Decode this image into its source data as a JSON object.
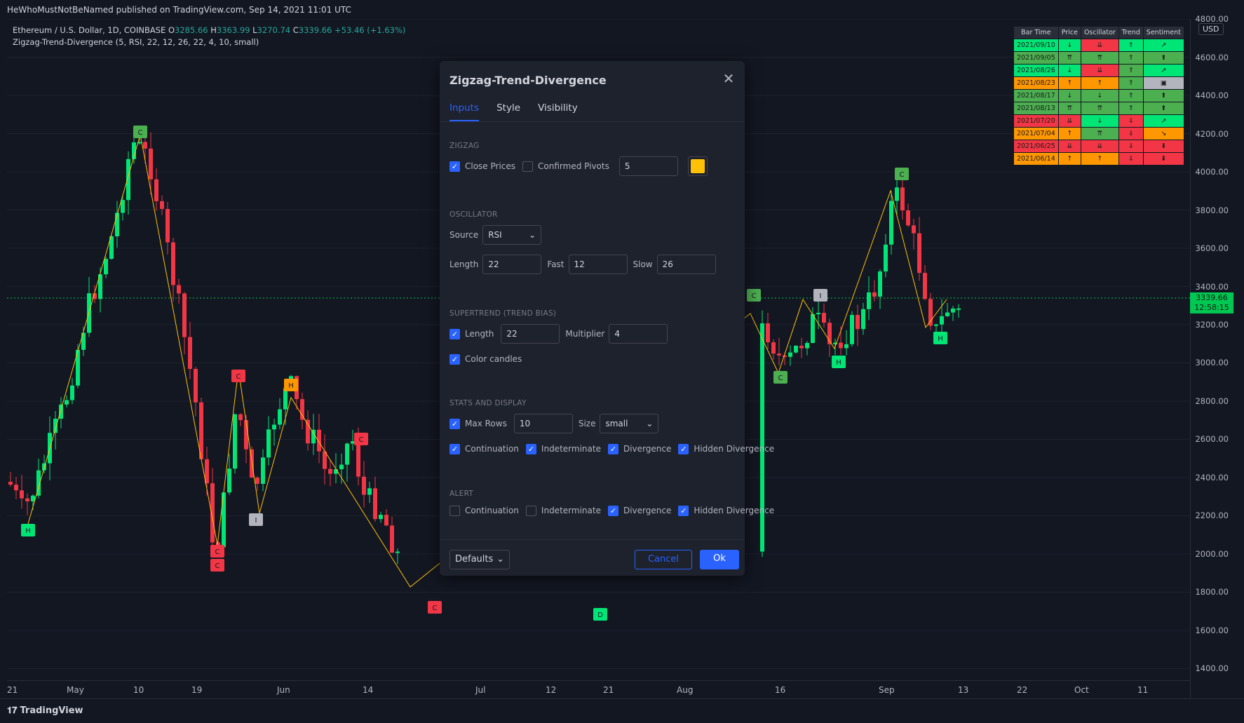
{
  "header": {
    "published": "HeWhoMustNotBeNamed published on TradingView.com, Sep 14, 2021 11:01 UTC"
  },
  "legend": {
    "symbol": "Ethereum / U.S. Dollar, 1D, COINBASE",
    "o_label": "O",
    "o_value": "3285.66",
    "h_label": "H",
    "h_value": "3363.99",
    "l_label": "L",
    "l_value": "3270.74",
    "c_label": "C",
    "c_value": "3339.66",
    "change": "+53.46 (+1.63%)",
    "indicator": "Zigzag-Trend-Divergence (5, RSI, 22, 12, 26, 22, 4, 10, small)"
  },
  "price_axis": {
    "currency": "USD",
    "ticks": [
      "4800.00",
      "4600.00",
      "4400.00",
      "4200.00",
      "4000.00",
      "3800.00",
      "3600.00",
      "3400.00",
      "3200.00",
      "3000.00",
      "2800.00",
      "2600.00",
      "2400.00",
      "2200.00",
      "2000.00",
      "1800.00",
      "1600.00",
      "1400.00"
    ],
    "last_price": "3339.66",
    "countdown": "12:58:15"
  },
  "time_axis": {
    "ticks": [
      "21",
      "May",
      "10",
      "19",
      "Jun",
      "14",
      "Jul",
      "12",
      "21",
      "Aug",
      "16",
      "Sep",
      "13",
      "22",
      "Oct",
      "11"
    ]
  },
  "footer": {
    "brand": "TradingView"
  },
  "stats_table": {
    "headers": [
      "Bar Time",
      "Price",
      "Oscillator",
      "Trend",
      "Sentiment"
    ],
    "rows": [
      {
        "cells": [
          "2021/09/10",
          "↓",
          "⇊",
          "⇑",
          "↗"
        ],
        "colors": [
          "g",
          "g",
          "r",
          "g",
          "g"
        ]
      },
      {
        "cells": [
          "2021/09/05",
          "⇈",
          "⇈",
          "⇑",
          "⬆"
        ],
        "colors": [
          "dg",
          "dg",
          "dg",
          "dg",
          "dg"
        ]
      },
      {
        "cells": [
          "2021/08/26",
          "↓",
          "⇊",
          "⇑",
          "↗"
        ],
        "colors": [
          "g",
          "g",
          "r",
          "dg",
          "g"
        ]
      },
      {
        "cells": [
          "2021/08/23",
          "↑",
          "↑",
          "⇑",
          "▣"
        ],
        "colors": [
          "o",
          "o",
          "o",
          "dg",
          "gy"
        ]
      },
      {
        "cells": [
          "2021/08/17",
          "↓",
          "↓",
          "⇑",
          "⬆"
        ],
        "colors": [
          "dg",
          "dg",
          "dg",
          "dg",
          "dg"
        ]
      },
      {
        "cells": [
          "2021/08/13",
          "⇈",
          "⇈",
          "⇑",
          "⬆"
        ],
        "colors": [
          "dg",
          "dg",
          "dg",
          "dg",
          "dg"
        ]
      },
      {
        "cells": [
          "2021/07/20",
          "⇊",
          "↓",
          "⇓",
          "↗"
        ],
        "colors": [
          "r",
          "r",
          "g",
          "r",
          "g"
        ]
      },
      {
        "cells": [
          "2021/07/04",
          "↑",
          "⇈",
          "⇓",
          "↘"
        ],
        "colors": [
          "o",
          "o",
          "dg",
          "r",
          "o"
        ]
      },
      {
        "cells": [
          "2021/06/25",
          "⇊",
          "⇊",
          "⇓",
          "⬇"
        ],
        "colors": [
          "r",
          "r",
          "r",
          "r",
          "r"
        ]
      },
      {
        "cells": [
          "2021/06/14",
          "↑",
          "↑",
          "⇓",
          "⬇"
        ],
        "colors": [
          "o",
          "o",
          "o",
          "r",
          "r"
        ]
      }
    ]
  },
  "dialog": {
    "title": "Zigzag-Trend-Divergence",
    "tabs": [
      "Inputs",
      "Style",
      "Visibility"
    ],
    "zigzag": {
      "section": "ZIGZAG",
      "close_prices": "Close Prices",
      "confirmed_pivots": "Confirmed Pivots",
      "length": "5",
      "color": "#ffc107"
    },
    "oscillator": {
      "section": "OSCILLATOR",
      "source_label": "Source",
      "source_value": "RSI",
      "length_label": "Length",
      "length": "22",
      "fast_label": "Fast",
      "fast": "12",
      "slow_label": "Slow",
      "slow": "26"
    },
    "supertrend": {
      "section": "SUPERTREND (TREND BIAS)",
      "length_label": "Length",
      "length": "22",
      "multiplier_label": "Multiplier",
      "multiplier": "4",
      "color_candles": "Color candles"
    },
    "stats": {
      "section": "STATS AND DISPLAY",
      "max_rows_label": "Max Rows",
      "max_rows": "10",
      "size_label": "Size",
      "size": "small",
      "continuation": "Continuation",
      "indeterminate": "Indeterminate",
      "divergence": "Divergence",
      "hidden_divergence": "Hidden Divergence"
    },
    "alert": {
      "section": "ALERT",
      "continuation": "Continuation",
      "indeterminate": "Indeterminate",
      "divergence": "Divergence",
      "hidden_divergence": "Hidden Divergence"
    },
    "defaults_label": "Defaults",
    "cancel_label": "Cancel",
    "ok_label": "Ok"
  },
  "colors": {
    "up": "#00e676",
    "down": "#f23645",
    "zigzag": "#ffc107",
    "accent": "#2962ff",
    "background": "#131722"
  },
  "pivot_labels": [
    "C",
    "H",
    "C",
    "C",
    "H",
    "I",
    "C",
    "C",
    "C",
    "D",
    "C",
    "C",
    "H",
    "I",
    "C",
    "H"
  ]
}
